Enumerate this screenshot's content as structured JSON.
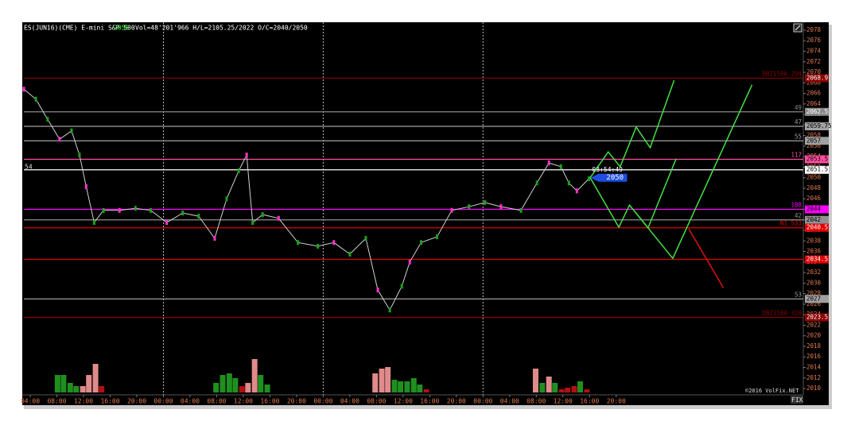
{
  "chart_data": {
    "type": "line",
    "header": {
      "symbol": "ES(JUN16)(CME) E-mini S&P 500",
      "last": 2050,
      "stats": "Vol=48'201'966 H/L=2105.25/2022 O/C=2040/2050"
    },
    "left_note": "54",
    "copyright": "©2016 VolFix.NET",
    "button": "FIX",
    "xlim": [
      -1.2,
      116.1
    ],
    "ylim": [
      2008.8,
      2079.5
    ],
    "yticks": [
      2010,
      2012,
      2014,
      2016,
      2018,
      2020,
      2022,
      2024,
      2026,
      2028,
      2030,
      2032,
      2034,
      2036,
      2038,
      2040,
      2042,
      2044,
      2046,
      2048,
      2050,
      2052,
      2054,
      2056,
      2058,
      2060,
      2062,
      2064,
      2066,
      2068,
      2070,
      2072,
      2074,
      2076,
      2078
    ],
    "xticks": [
      {
        "value": 0,
        "label": "04:00"
      },
      {
        "value": 4,
        "label": "08:00"
      },
      {
        "value": 8,
        "label": "12:00"
      },
      {
        "value": 12,
        "label": "16:00"
      },
      {
        "value": 16,
        "label": "20:00"
      },
      {
        "value": 20,
        "label": "00:00"
      },
      {
        "value": 24,
        "label": "04:00"
      },
      {
        "value": 28,
        "label": "08:00"
      },
      {
        "value": 32,
        "label": "12:00"
      },
      {
        "value": 36,
        "label": "16:00"
      },
      {
        "value": 40,
        "label": "20:00"
      },
      {
        "value": 44,
        "label": "00:00"
      },
      {
        "value": 48,
        "label": "04:00"
      },
      {
        "value": 52,
        "label": "08:00"
      },
      {
        "value": 56,
        "label": "12:00"
      },
      {
        "value": 60,
        "label": "16:00"
      },
      {
        "value": 64,
        "label": "20:00"
      },
      {
        "value": 68,
        "label": "00:00"
      },
      {
        "value": 72,
        "label": "04:00"
      },
      {
        "value": 76,
        "label": "08:00"
      },
      {
        "value": 80,
        "label": "12:00"
      },
      {
        "value": 84,
        "label": "16:00"
      },
      {
        "value": 88,
        "label": "20:00"
      }
    ],
    "day_separators": [
      20,
      44,
      68
    ],
    "price": {
      "name": "ES",
      "color": "#d0d0d0",
      "x": [
        -0.96,
        0.84,
        2.6,
        4.4,
        6.2,
        7.4,
        8.4,
        9.6,
        11.0,
        13.4,
        15.8,
        18.1,
        20.5,
        22.9,
        25.3,
        27.7,
        29.5,
        31.3,
        32.5,
        33.4,
        34.9,
        37.3,
        40.2,
        43.2,
        45.6,
        48.0,
        50.4,
        52.2,
        54.0,
        55.8,
        57.0,
        58.7,
        61.1,
        63.3,
        65.9,
        68.3,
        70.7,
        73.7,
        76.1,
        77.9,
        79.7,
        80.9,
        82.1,
        83.9
      ],
      "values": [
        2066.8,
        2064.9,
        2061.1,
        2057.3,
        2058.9,
        2054.3,
        2048.3,
        2041.5,
        2043.8,
        2043.8,
        2044.2,
        2043.8,
        2041.5,
        2043.3,
        2042.7,
        2038.5,
        2046.0,
        2051.3,
        2054.3,
        2041.5,
        2043.0,
        2042.3,
        2037.7,
        2037.0,
        2037.7,
        2035.5,
        2038.5,
        2028.7,
        2024.9,
        2029.4,
        2034.0,
        2037.7,
        2038.8,
        2043.8,
        2044.5,
        2045.3,
        2044.5,
        2043.8,
        2049.0,
        2052.8,
        2052.1,
        2049.0,
        2047.5,
        2049.8
      ]
    },
    "current_price": {
      "value": 2050,
      "timer": "03:54:49",
      "color": "#1f4fe0"
    },
    "levels": [
      {
        "value": 2068.9,
        "color": "#8b0000",
        "label": "DBZ150A 294"
      },
      {
        "value": 2062.5,
        "color": "#8a8a8a",
        "label": "49"
      },
      {
        "value": 2059.75,
        "color": "#a0a0a0",
        "label": "47"
      },
      {
        "value": 2057,
        "color": "#a0a0a0",
        "label": "55"
      },
      {
        "value": 2053.5,
        "color": "#ff4fa0",
        "label": "117"
      },
      {
        "value": 2051.5,
        "color": "#ffffff"
      },
      {
        "value": 2044,
        "color": "#ff00ff",
        "label": "108"
      },
      {
        "value": 2042,
        "color": "#909090",
        "label": "42"
      },
      {
        "value": 2040.5,
        "color": "#e00000",
        "label": "N1 533"
      },
      {
        "value": 2034.5,
        "color": "#e00000"
      },
      {
        "value": 2027,
        "color": "#a0a0a0",
        "label": "53"
      },
      {
        "value": 2023.5,
        "color": "#8b0000",
        "label": "DBZ150A 320"
      }
    ],
    "projections": [
      {
        "color": "#44e044",
        "x": [
          84.1,
          86.8,
          88.6,
          91.0,
          93.1,
          96.7
        ],
        "values": [
          2050,
          2054.9,
          2052.1,
          2059.6,
          2055.7,
          2068.5
        ]
      },
      {
        "color": "#44e044",
        "x": [
          84.1,
          88.4,
          90.0,
          92.8,
          97.0
        ],
        "values": [
          2050,
          2040.6,
          2044.8,
          2040.5,
          2053.6
        ]
      },
      {
        "color": "#44e044",
        "x": [
          90.0,
          96.5,
          108.4
        ],
        "values": [
          2044.8,
          2034.7,
          2067.6
        ]
      },
      {
        "color": "#e01010",
        "x": [
          98.9,
          104.1
        ],
        "values": [
          2040.3,
          2029.1
        ]
      }
    ],
    "volume": {
      "vlim": [
        0,
        50
      ],
      "x": [
        4.1,
        5.0,
        6.0,
        6.9,
        7.9,
        8.8,
        9.8,
        10.7,
        27.9,
        28.9,
        29.9,
        30.8,
        31.8,
        32.7,
        33.7,
        34.6,
        35.6,
        51.8,
        52.8,
        53.7,
        54.7,
        55.6,
        56.6,
        57.6,
        58.5,
        59.5,
        75.9,
        76.9,
        77.9,
        78.8,
        79.8,
        80.7,
        81.7,
        82.6,
        83.6
      ],
      "values": [
        22,
        22,
        12,
        8,
        8,
        22,
        36,
        8,
        12,
        22,
        24,
        18,
        8,
        12,
        42,
        22,
        10,
        24,
        30,
        32,
        16,
        14,
        14,
        18,
        10,
        4,
        30,
        12,
        20,
        12,
        4,
        6,
        8,
        14,
        4
      ],
      "colors": [
        "#1f8f1f",
        "#1f8f1f",
        "#1f8f1f",
        "#1f8f1f",
        "#e08a8a",
        "#e08a8a",
        "#e08a8a",
        "#b01010",
        "#1f8f1f",
        "#1f8f1f",
        "#1f8f1f",
        "#1f8f1f",
        "#b01010",
        "#e08a8a",
        "#e08a8a",
        "#1f8f1f",
        "#1f8f1f",
        "#e08a8a",
        "#e08a8a",
        "#e08a8a",
        "#1f8f1f",
        "#1f8f1f",
        "#1f8f1f",
        "#1f8f1f",
        "#1f8f1f",
        "#b01010",
        "#e08a8a",
        "#1f8f1f",
        "#e08a8a",
        "#1f8f1f",
        "#b01010",
        "#b01010",
        "#b01010",
        "#1f8f1f",
        "#b01010"
      ]
    }
  }
}
